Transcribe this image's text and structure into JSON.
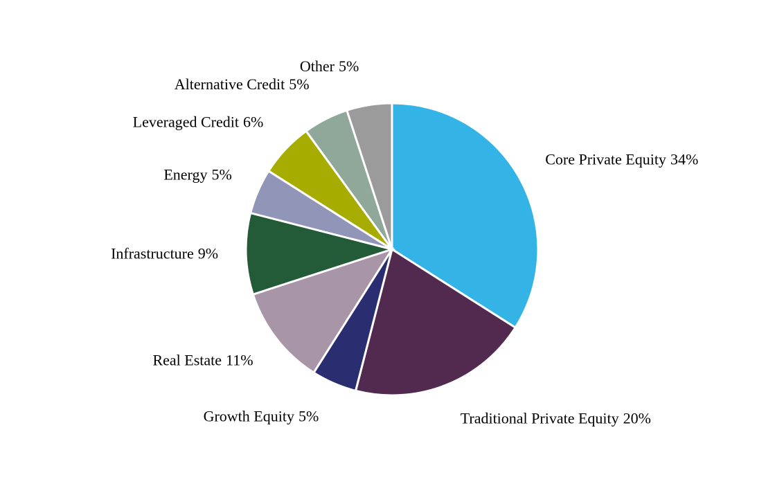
{
  "chart_data": {
    "type": "pie",
    "categories": [
      "Core Private Equity",
      "Traditional Private Equity",
      "Growth Equity",
      "Real Estate",
      "Infrastructure",
      "Energy",
      "Leveraged Credit",
      "Alternative Credit",
      "Other"
    ],
    "values": [
      34,
      20,
      5,
      11,
      9,
      5,
      6,
      5,
      5
    ],
    "value_labels": [
      "34%",
      "20%",
      "5%",
      "11%",
      "9%",
      "5%",
      "6%",
      "5%",
      "5%"
    ],
    "colors": [
      "#33b3e6",
      "#52294f",
      "#2a2d70",
      "#a895a7",
      "#235a37",
      "#9195b8",
      "#a6ad00",
      "#8fa89a",
      "#9b9b9b"
    ]
  }
}
